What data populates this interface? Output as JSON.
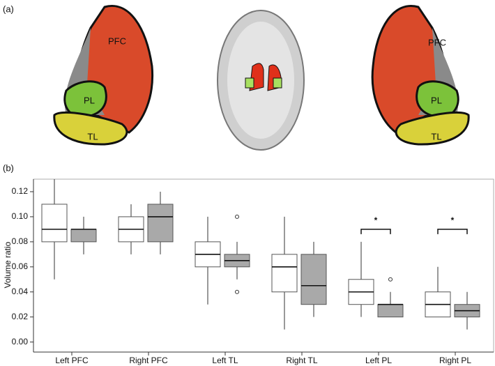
{
  "panel_a": {
    "label": "(a)",
    "left_regions": [
      "PFC",
      "PL",
      "TL"
    ],
    "right_regions": [
      "PFC",
      "PL",
      "TL"
    ]
  },
  "chart_data": {
    "type": "box",
    "panel_label": "(b)",
    "y_label": "Volume ratio",
    "categories": [
      "Left PFC",
      "Right PFC",
      "Left TL",
      "Right TL",
      "Left PL",
      "Right PL"
    ],
    "series": [
      {
        "color": "#ffffff",
        "values": [
          {
            "low": 0.05,
            "q1": 0.08,
            "median": 0.09,
            "q3": 0.11,
            "high": 0.13,
            "outliers": []
          },
          {
            "low": 0.07,
            "q1": 0.08,
            "median": 0.09,
            "q3": 0.1,
            "high": 0.11,
            "outliers": []
          },
          {
            "low": 0.03,
            "q1": 0.06,
            "median": 0.07,
            "q3": 0.08,
            "high": 0.1,
            "outliers": []
          },
          {
            "low": 0.01,
            "q1": 0.04,
            "median": 0.06,
            "q3": 0.07,
            "high": 0.1,
            "outliers": []
          },
          {
            "low": 0.02,
            "q1": 0.03,
            "median": 0.04,
            "q3": 0.05,
            "high": 0.08,
            "outliers": []
          },
          {
            "low": 0.02,
            "q1": 0.02,
            "median": 0.03,
            "q3": 0.04,
            "high": 0.06,
            "outliers": []
          }
        ]
      },
      {
        "color": "#a9a9a9",
        "values": [
          {
            "low": 0.07,
            "q1": 0.08,
            "median": 0.09,
            "q3": 0.09,
            "high": 0.1,
            "outliers": []
          },
          {
            "low": 0.07,
            "q1": 0.08,
            "median": 0.1,
            "q3": 0.11,
            "high": 0.12,
            "outliers": []
          },
          {
            "low": 0.05,
            "q1": 0.06,
            "median": 0.065,
            "q3": 0.07,
            "high": 0.08,
            "outliers": [
              0.1,
              0.04
            ]
          },
          {
            "low": 0.02,
            "q1": 0.03,
            "median": 0.045,
            "q3": 0.07,
            "high": 0.08,
            "outliers": []
          },
          {
            "low": 0.02,
            "q1": 0.02,
            "median": 0.03,
            "q3": 0.03,
            "high": 0.04,
            "outliers": [
              0.05
            ]
          },
          {
            "low": 0.01,
            "q1": 0.02,
            "median": 0.025,
            "q3": 0.03,
            "high": 0.04,
            "outliers": []
          }
        ]
      }
    ],
    "annotations": [
      {
        "category": "Left PL",
        "label": "*",
        "y": 0.09
      },
      {
        "category": "Right PL",
        "label": "*",
        "y": 0.09
      }
    ],
    "ylim": [
      -0.008,
      0.13
    ],
    "yticks": [
      {
        "value": 0,
        "label": "0.00"
      },
      {
        "value": 0.02,
        "label": "0.02"
      },
      {
        "value": 0.04,
        "label": "0.04"
      },
      {
        "value": 0.06,
        "label": "0.06"
      },
      {
        "value": 0.08,
        "label": "0.08"
      },
      {
        "value": 0.1,
        "label": "0.10"
      },
      {
        "value": 0.12,
        "label": "0.12"
      }
    ]
  }
}
